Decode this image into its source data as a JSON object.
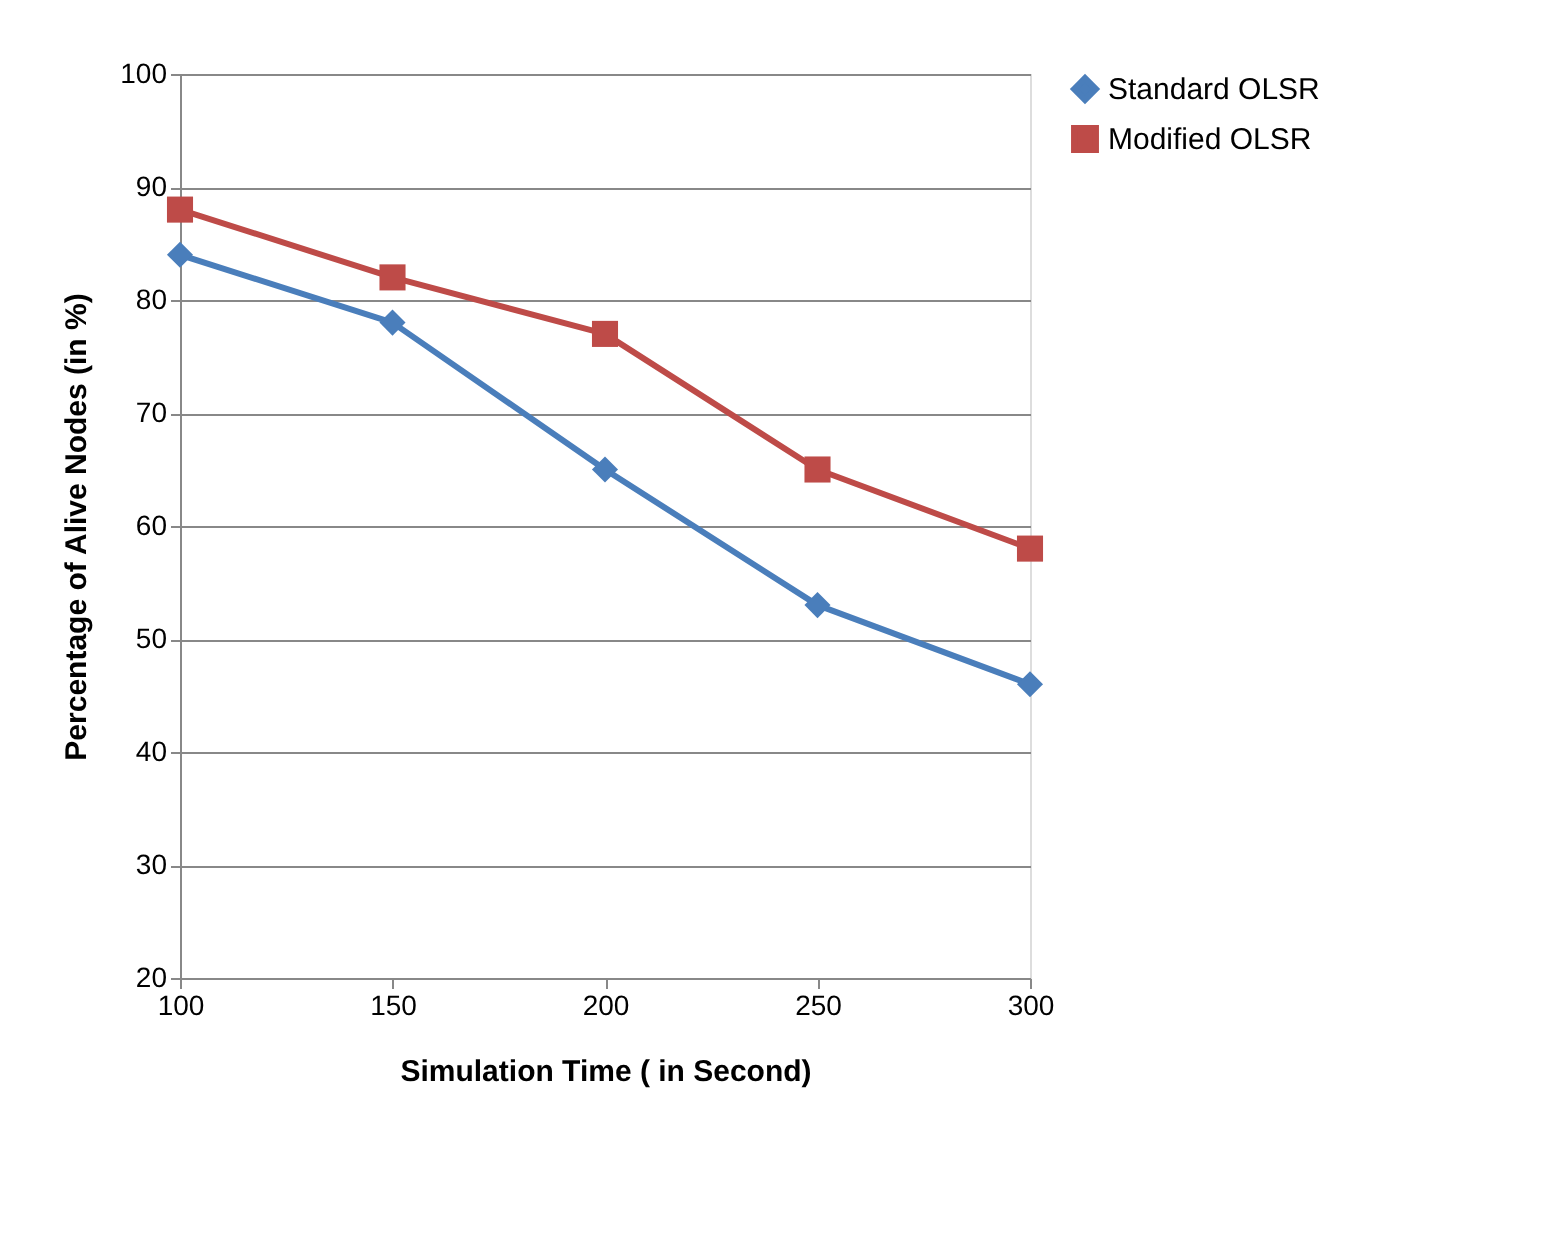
{
  "chart_data": {
    "type": "line",
    "xlabel": "Simulation Time ( in Second)",
    "ylabel": "Percentage of Alive Nodes (in %)",
    "x": [
      100,
      150,
      200,
      250,
      300
    ],
    "series": [
      {
        "name": "Standard OLSR",
        "color": "#4a7ebb",
        "marker": "diamond",
        "values": [
          84,
          78,
          65,
          53,
          46
        ]
      },
      {
        "name": "Modified OLSR",
        "color": "#be4b48",
        "marker": "square",
        "values": [
          88,
          82,
          77,
          65,
          58
        ]
      }
    ],
    "xlim": [
      100,
      300
    ],
    "xticks": [
      100,
      150,
      200,
      250,
      300
    ],
    "ylim": [
      20,
      100
    ],
    "yticks": [
      20,
      30,
      40,
      50,
      60,
      70,
      80,
      90,
      100
    ],
    "grid": "y",
    "legend": "right",
    "line_style": "solid"
  }
}
